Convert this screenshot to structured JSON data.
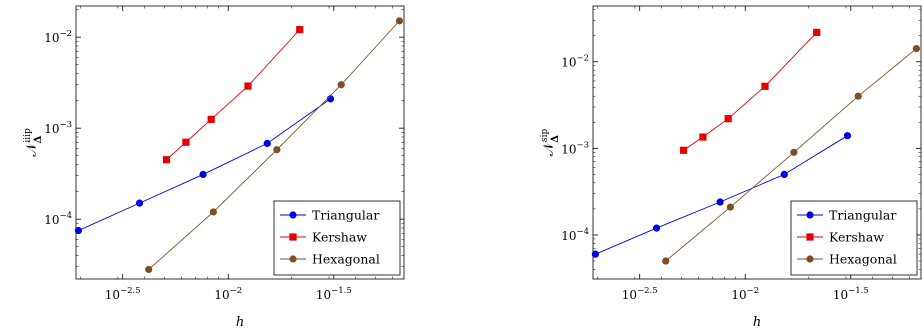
{
  "chart_data": [
    {
      "type": "line",
      "scale": {
        "x": "log",
        "y": "log"
      },
      "xlabel": "h",
      "ylabel_base": "𝒩",
      "ylabel_sub": "Δ",
      "ylabel_sup": "iiip",
      "xlim": [
        0.0019,
        0.068
      ],
      "ylim": [
        2.2e-05,
        0.022
      ],
      "xticks": [
        {
          "exp": "−2.5",
          "value": 0.003162
        },
        {
          "exp": "−2",
          "value": 0.01
        },
        {
          "exp": "−1.5",
          "value": 0.031623
        }
      ],
      "yticks": [
        {
          "exp": "−4",
          "value": 0.0001
        },
        {
          "exp": "−3",
          "value": 0.001
        },
        {
          "exp": "−2",
          "value": 0.01
        }
      ],
      "tick_base": "10",
      "grid": false,
      "legend_position": "bottom-right",
      "series": [
        {
          "name": "Triangular",
          "color": "#0000e6",
          "marker": "circle",
          "x": [
            0.00195,
            0.0038,
            0.0076,
            0.0153,
            0.0305
          ],
          "y": [
            7.5e-05,
            0.00015,
            0.00031,
            0.00068,
            0.0021
          ]
        },
        {
          "name": "Kershaw",
          "color": "#e60000",
          "marker": "square",
          "x": [
            0.0051,
            0.0063,
            0.0083,
            0.0124,
            0.0218
          ],
          "y": [
            0.00045,
            0.0007,
            0.00125,
            0.0029,
            0.0121
          ]
        },
        {
          "name": "Hexagonal",
          "color": "#7f4f23",
          "marker": "circle",
          "x": [
            0.0042,
            0.0085,
            0.017,
            0.0343,
            0.0647
          ],
          "y": [
            2.8e-05,
            0.00012,
            0.00058,
            0.003,
            0.0151
          ]
        }
      ]
    },
    {
      "type": "line",
      "scale": {
        "x": "log",
        "y": "log"
      },
      "xlabel": "h",
      "ylabel_base": "𝒩",
      "ylabel_sub": "Δ",
      "ylabel_sup": "sip",
      "xlim": [
        0.0019,
        0.068
      ],
      "ylim": [
        3.1e-05,
        0.044
      ],
      "xticks": [
        {
          "exp": "−2.5",
          "value": 0.003162
        },
        {
          "exp": "−2",
          "value": 0.01
        },
        {
          "exp": "−1.5",
          "value": 0.031623
        }
      ],
      "yticks": [
        {
          "exp": "−4",
          "value": 0.0001
        },
        {
          "exp": "−3",
          "value": 0.001
        },
        {
          "exp": "−2",
          "value": 0.01
        }
      ],
      "tick_base": "10",
      "grid": false,
      "legend_position": "bottom-right",
      "series": [
        {
          "name": "Triangular",
          "color": "#0000e6",
          "marker": "circle",
          "x": [
            0.00195,
            0.0038,
            0.0076,
            0.0153,
            0.0305
          ],
          "y": [
            6e-05,
            0.00012,
            0.00024,
            0.0005,
            0.0014
          ]
        },
        {
          "name": "Kershaw",
          "color": "#e60000",
          "marker": "square",
          "x": [
            0.0051,
            0.0063,
            0.0083,
            0.0124,
            0.0218
          ],
          "y": [
            0.00095,
            0.00135,
            0.0022,
            0.0052,
            0.0218
          ]
        },
        {
          "name": "Hexagonal",
          "color": "#7f4f23",
          "marker": "circle",
          "x": [
            0.0042,
            0.0085,
            0.017,
            0.0343,
            0.0647
          ],
          "y": [
            5e-05,
            0.00021,
            0.0009,
            0.004,
            0.0142
          ]
        }
      ]
    }
  ]
}
